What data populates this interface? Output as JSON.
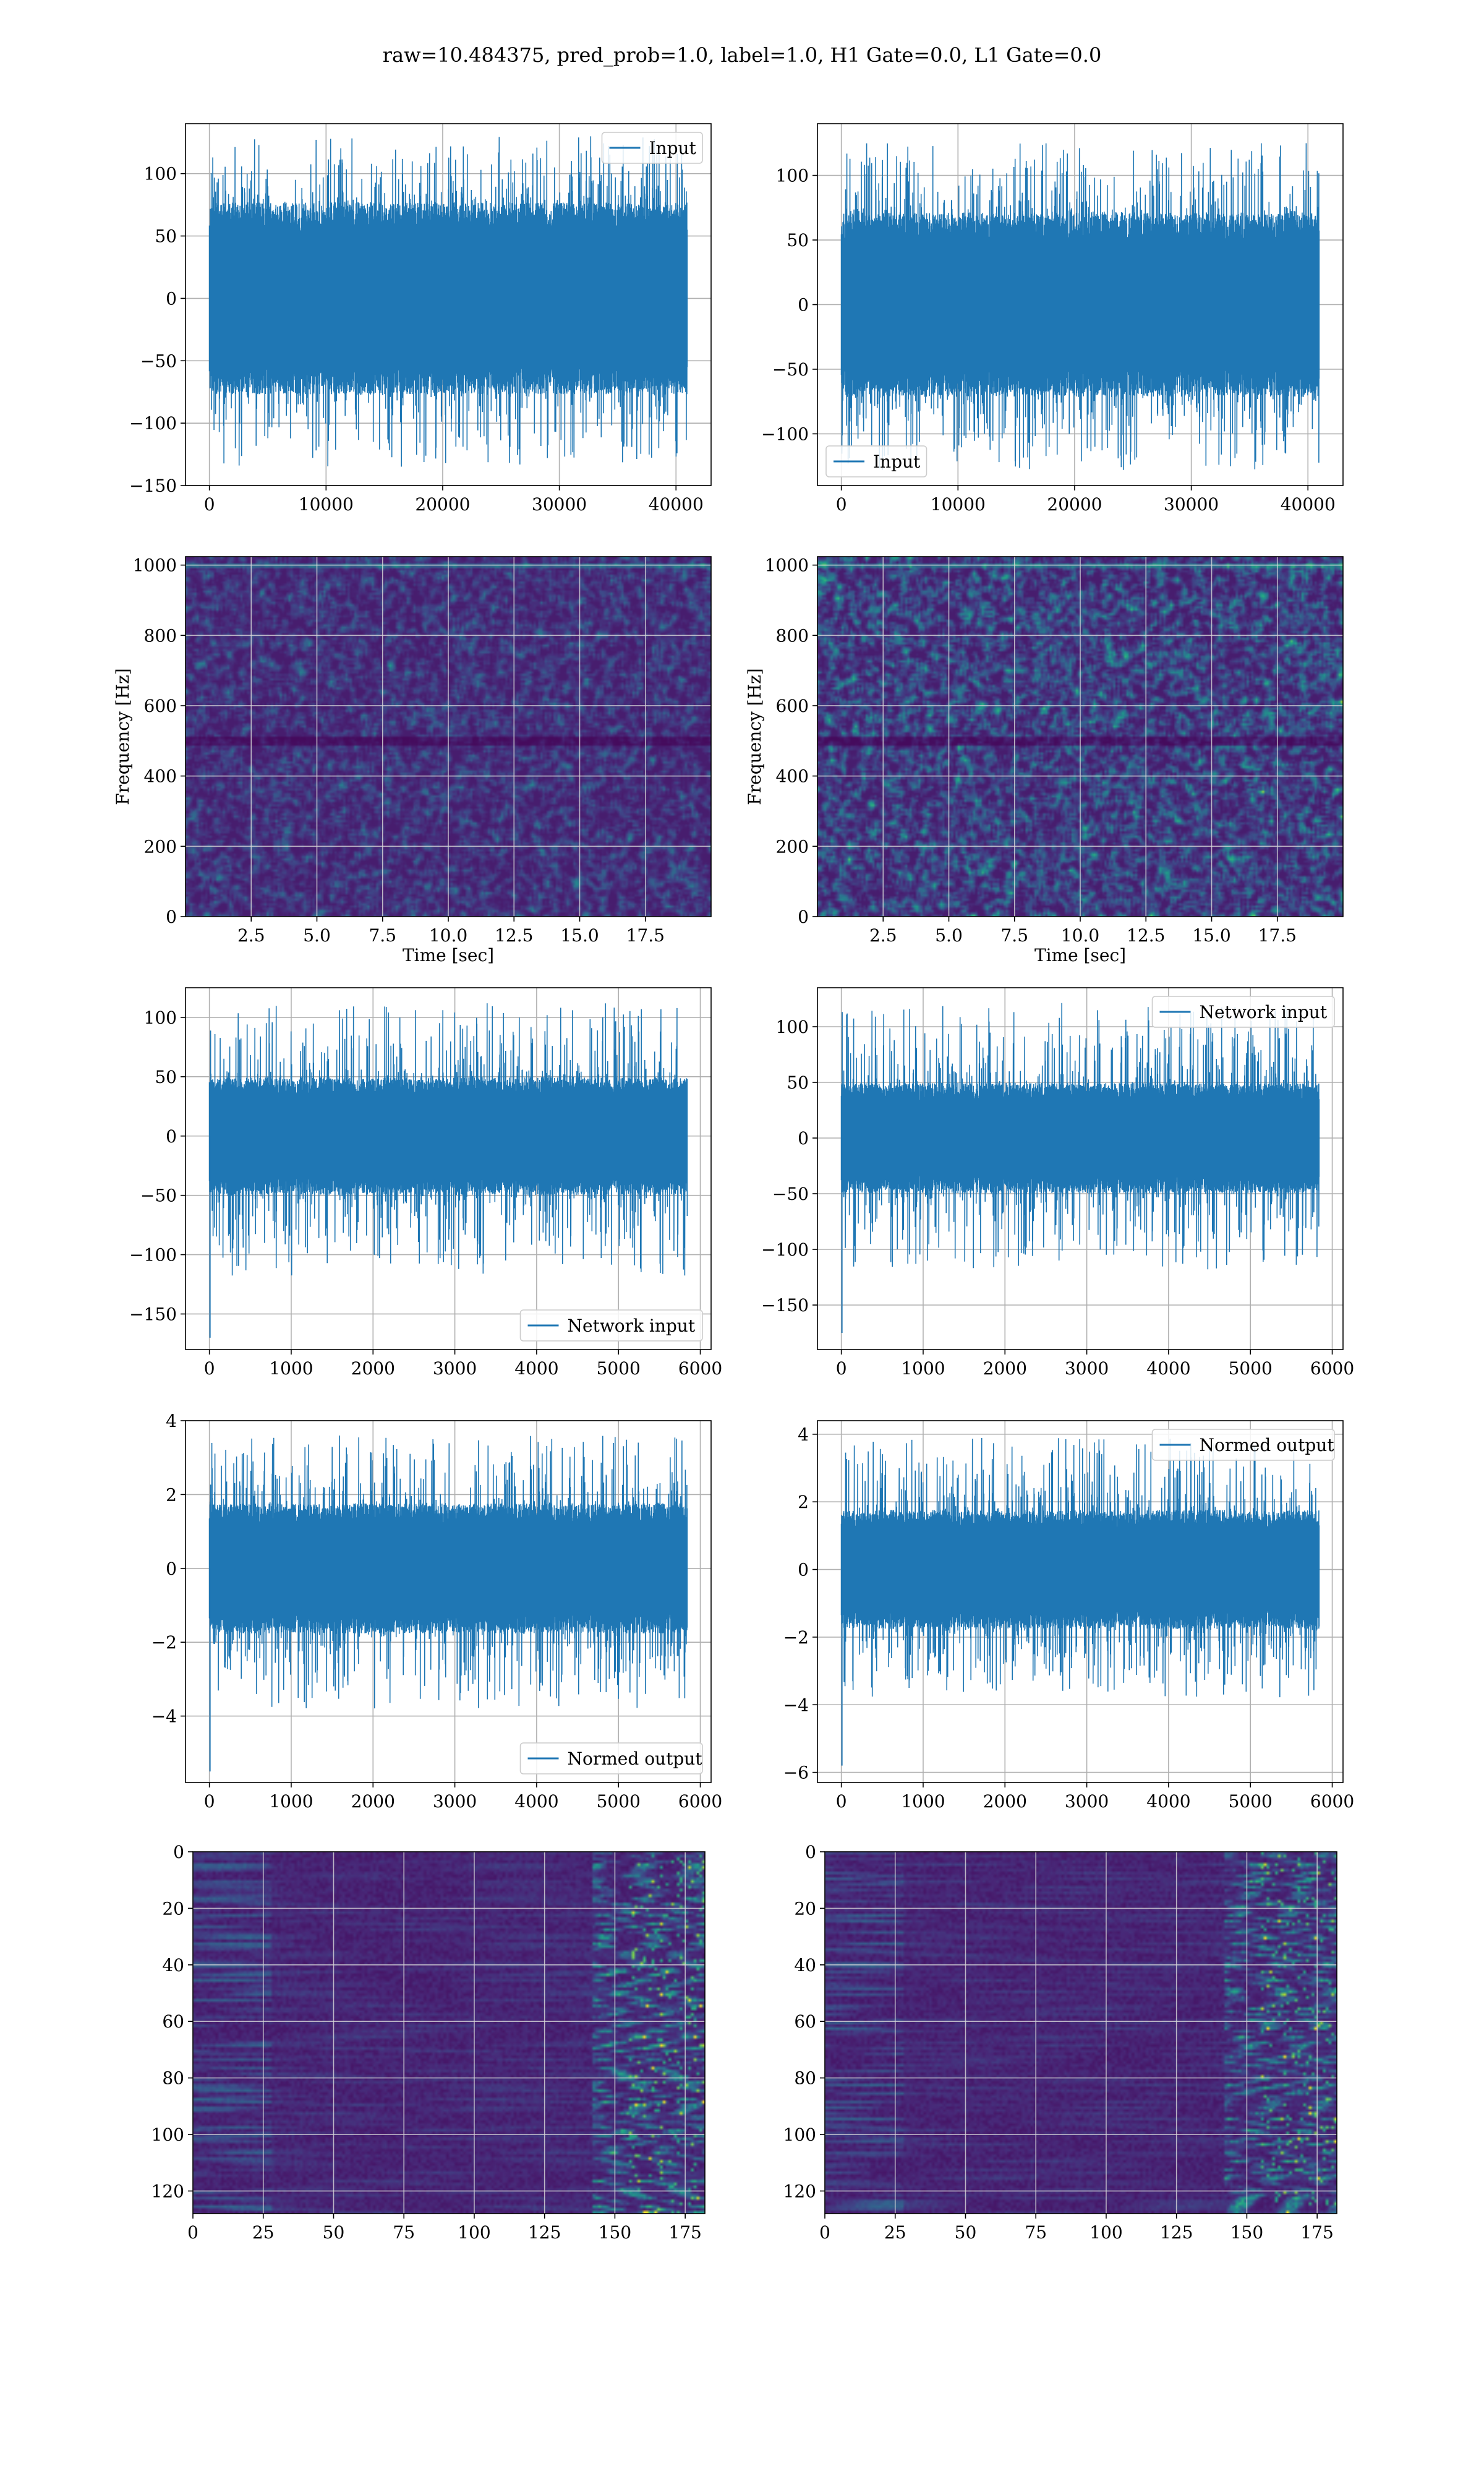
{
  "figure": {
    "title": "raw=10.484375, pred_prob=1.0, label=1.0, H1 Gate=0.0, L1 Gate=0.0"
  },
  "colors": {
    "series": "#1f77b4",
    "grid": "#b0b0b0",
    "viridis_dark": "#440154",
    "viridis_mid": "#3b528b",
    "viridis_teal": "#21908d",
    "viridis_green": "#5dc963",
    "viridis_yellow": "#fde725"
  },
  "chart_data": [
    {
      "id": "p1",
      "type": "line",
      "legend": {
        "label": "Input",
        "placement": "upper-right"
      },
      "x_range": [
        0,
        40960
      ],
      "xlim": [
        -2048,
        43008
      ],
      "ylim": [
        -150,
        140
      ],
      "xticks": [
        0,
        10000,
        20000,
        30000,
        40000
      ],
      "yticks": [
        100,
        50,
        0,
        -50,
        -100,
        -150
      ],
      "signal": {
        "n": 40960,
        "core": 70,
        "peak_max": 130,
        "peak_min": -135,
        "seed": 11
      },
      "grid": true
    },
    {
      "id": "p2",
      "type": "line",
      "legend": {
        "label": "Input",
        "placement": "lower-left"
      },
      "x_range": [
        0,
        40960
      ],
      "xlim": [
        -2048,
        43008
      ],
      "ylim": [
        -140,
        140
      ],
      "xticks": [
        0,
        10000,
        20000,
        30000,
        40000
      ],
      "yticks": [
        100,
        50,
        0,
        -50,
        -100
      ],
      "signal": {
        "n": 40960,
        "core": 65,
        "peak_max": 125,
        "peak_min": -128,
        "seed": 23
      },
      "grid": true
    },
    {
      "id": "p3",
      "type": "heatmap",
      "xlabel": "Time [sec]",
      "ylabel": "Frequency [Hz]",
      "xlim": [
        0,
        20
      ],
      "ylim": [
        0,
        1024
      ],
      "xticks": [
        2.5,
        5.0,
        7.5,
        10.0,
        12.5,
        15.0,
        17.5
      ],
      "yticks": [
        0,
        200,
        400,
        600,
        800,
        1000
      ],
      "intensity": 0.55,
      "seed": 31,
      "grid": true
    },
    {
      "id": "p4",
      "type": "heatmap",
      "xlabel": "Time [sec]",
      "ylabel": "Frequency [Hz]",
      "xlim": [
        0,
        20
      ],
      "ylim": [
        0,
        1024
      ],
      "xticks": [
        2.5,
        5.0,
        7.5,
        10.0,
        12.5,
        15.0,
        17.5
      ],
      "yticks": [
        0,
        200,
        400,
        600,
        800,
        1000
      ],
      "intensity": 0.9,
      "seed": 47,
      "grid": true
    },
    {
      "id": "p5",
      "type": "line",
      "legend": {
        "label": "Network input",
        "placement": "lower-right"
      },
      "x_range": [
        0,
        5840
      ],
      "xlim": [
        -292,
        6132
      ],
      "ylim": [
        -180,
        125
      ],
      "xticks": [
        0,
        1000,
        2000,
        3000,
        4000,
        5000,
        6000
      ],
      "yticks": [
        100,
        50,
        0,
        -50,
        -100,
        -150
      ],
      "signal": {
        "n": 5840,
        "core": 45,
        "peak_max": 112,
        "peak_min": -118,
        "spike": -170,
        "seed": 53
      },
      "grid": true
    },
    {
      "id": "p6",
      "type": "line",
      "legend": {
        "label": "Network input",
        "placement": "upper-right"
      },
      "x_range": [
        0,
        5840
      ],
      "xlim": [
        -292,
        6132
      ],
      "ylim": [
        -190,
        135
      ],
      "xticks": [
        0,
        1000,
        2000,
        3000,
        4000,
        5000,
        6000
      ],
      "yticks": [
        100,
        50,
        0,
        -50,
        -100,
        -150
      ],
      "signal": {
        "n": 5840,
        "core": 45,
        "peak_max": 122,
        "peak_min": -118,
        "spike": -175,
        "seed": 61
      },
      "grid": true
    },
    {
      "id": "p7",
      "type": "line",
      "legend": {
        "label": "Normed output",
        "placement": "lower-right"
      },
      "x_range": [
        0,
        5840
      ],
      "xlim": [
        -292,
        6132
      ],
      "ylim": [
        -5.8,
        4.0
      ],
      "xticks": [
        0,
        1000,
        2000,
        3000,
        4000,
        5000,
        6000
      ],
      "yticks": [
        4,
        2,
        0,
        -2,
        -4
      ],
      "signal": {
        "n": 5840,
        "core": 1.6,
        "peak_max": 3.6,
        "peak_min": -3.8,
        "spike": -5.5,
        "seed": 71
      },
      "grid": true
    },
    {
      "id": "p8",
      "type": "line",
      "legend": {
        "label": "Normed output",
        "placement": "upper-right"
      },
      "x_range": [
        0,
        5840
      ],
      "xlim": [
        -292,
        6132
      ],
      "ylim": [
        -6.3,
        4.4
      ],
      "xticks": [
        0,
        1000,
        2000,
        3000,
        4000,
        5000,
        6000
      ],
      "yticks": [
        4,
        2,
        0,
        -2,
        -4,
        -6
      ],
      "signal": {
        "n": 5840,
        "core": 1.6,
        "peak_max": 3.9,
        "peak_min": -3.8,
        "spike": -5.8,
        "seed": 83
      },
      "grid": true
    },
    {
      "id": "p9",
      "type": "heatmap",
      "xlim": [
        0,
        182
      ],
      "ylim": [
        0,
        128
      ],
      "y_inverted": true,
      "xticks": [
        0,
        25,
        50,
        75,
        100,
        125,
        150,
        175
      ],
      "yticks": [
        0,
        20,
        40,
        60,
        80,
        100,
        120
      ],
      "style": "streaks",
      "seed": 97,
      "grid": true
    },
    {
      "id": "p10",
      "type": "heatmap",
      "xlim": [
        0,
        182
      ],
      "ylim": [
        0,
        128
      ],
      "y_inverted": true,
      "xticks": [
        0,
        25,
        50,
        75,
        100,
        125,
        150,
        175
      ],
      "yticks": [
        0,
        20,
        40,
        60,
        80,
        100,
        120
      ],
      "style": "streaks",
      "seed": 109,
      "grid": true
    }
  ]
}
